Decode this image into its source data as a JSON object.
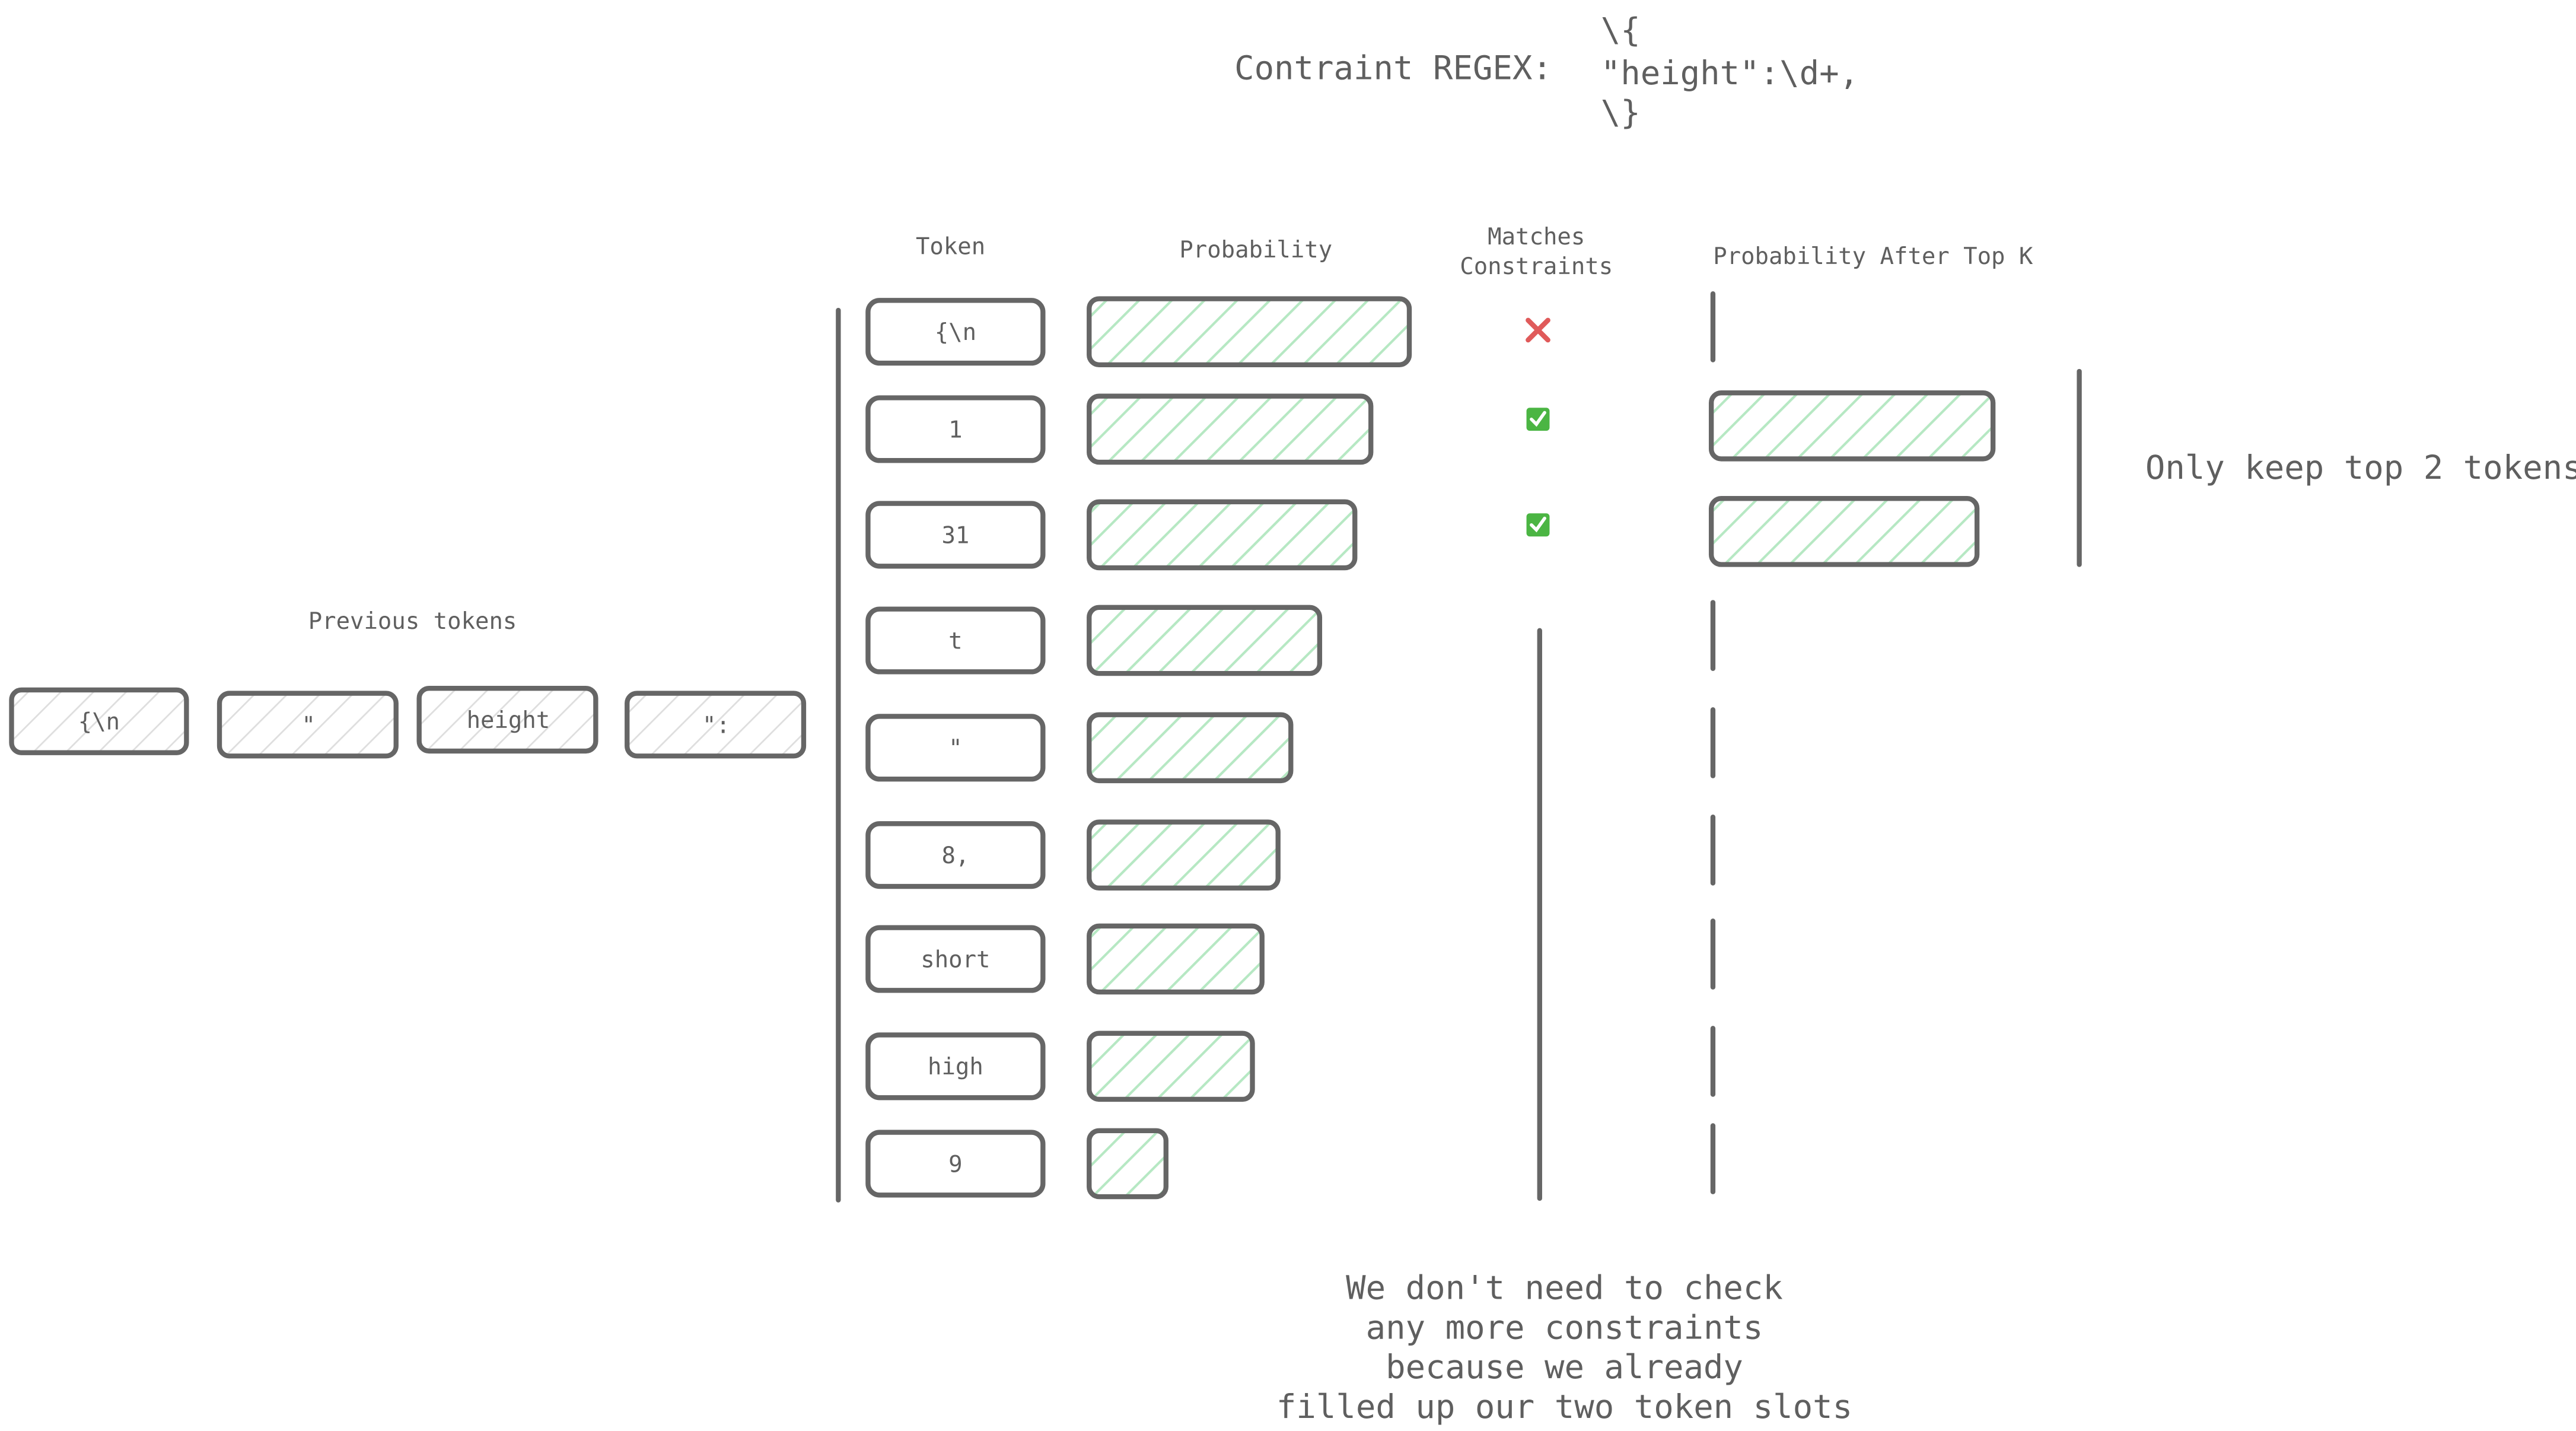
{
  "regex": {
    "label": "Contraint REGEX:",
    "lines": [
      "\\{",
      "\"height\":\\d+,",
      "\\}"
    ]
  },
  "columns": {
    "token": "Token",
    "probability": "Probability",
    "matches_line1": "Matches",
    "matches_line2": "Constraints",
    "after_top_k": "Probability After Top K"
  },
  "previous_tokens": {
    "label": "Previous tokens",
    "items": [
      "{\\n",
      "\"",
      "height",
      "\":"
    ]
  },
  "tokens": [
    {
      "label": "{\\n",
      "probability": 1.0,
      "match": "no",
      "after_top_k": 0
    },
    {
      "label": "1",
      "probability": 0.88,
      "match": "yes",
      "after_top_k": 0.88
    },
    {
      "label": "31",
      "probability": 0.83,
      "match": "yes",
      "after_top_k": 0.83
    },
    {
      "label": "t",
      "probability": 0.72,
      "match": "unchecked",
      "after_top_k": 0
    },
    {
      "label": "\"",
      "probability": 0.63,
      "match": "unchecked",
      "after_top_k": 0
    },
    {
      "label": "8,",
      "probability": 0.59,
      "match": "unchecked",
      "after_top_k": 0
    },
    {
      "label": "short",
      "probability": 0.54,
      "match": "unchecked",
      "after_top_k": 0
    },
    {
      "label": "high",
      "probability": 0.51,
      "match": "unchecked",
      "after_top_k": 0
    },
    {
      "label": "9",
      "probability": 0.24,
      "match": "unchecked",
      "after_top_k": 0
    }
  ],
  "match_icons": {
    "no": "✕",
    "yes": "✓"
  },
  "colors": {
    "bar_hatch": "#b6e8c3",
    "cross": "#e05a5a",
    "check_bg": "#4bb543",
    "stroke": "#666666",
    "text": "#5f5f5f"
  },
  "top_k_note": "Only keep top 2 tokens",
  "bottom_note": [
    "We don't need to check",
    "any more constraints",
    "because we already",
    "filled up our two token slots"
  ]
}
